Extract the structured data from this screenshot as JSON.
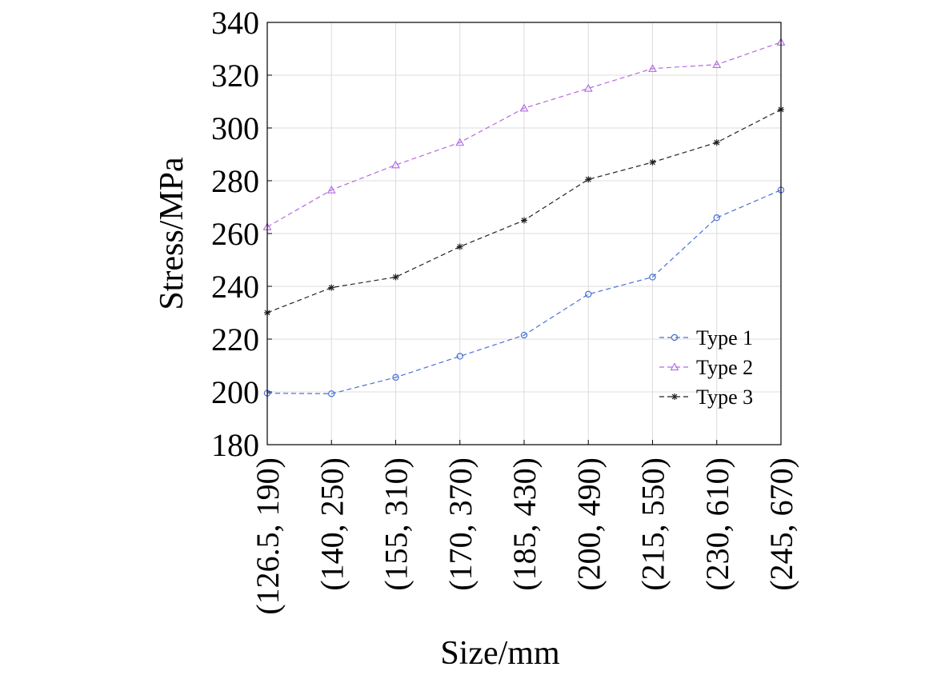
{
  "chart_data": {
    "type": "line",
    "title": "",
    "xlabel": "Size/mm",
    "ylabel": "Stress/MPa",
    "categories": [
      "(126.5, 190)",
      "(140, 250)",
      "(155, 310)",
      "(170, 370)",
      "(185, 430)",
      "(200, 490)",
      "(215, 550)",
      "(230, 610)",
      "(245, 670)"
    ],
    "ylim": [
      180,
      340
    ],
    "yticks": [
      180,
      200,
      220,
      240,
      260,
      280,
      300,
      320,
      340
    ],
    "grid": true,
    "legend_position": "lower-right",
    "series": [
      {
        "name": "Type 1",
        "marker": "circle",
        "color": "#4a6fd8",
        "values": [
          199.5,
          199.3,
          205.5,
          213.5,
          221.5,
          237.0,
          243.5,
          266.0,
          276.5
        ]
      },
      {
        "name": "Type 2",
        "marker": "triangle",
        "color": "#b36ae2",
        "values": [
          262.5,
          276.5,
          286.0,
          294.5,
          307.5,
          315.0,
          322.5,
          324.0,
          332.5
        ]
      },
      {
        "name": "Type 3",
        "marker": "star",
        "color": "#222222",
        "values": [
          230.0,
          239.5,
          243.5,
          255.0,
          265.0,
          280.5,
          287.0,
          294.5,
          307.0
        ]
      }
    ]
  }
}
